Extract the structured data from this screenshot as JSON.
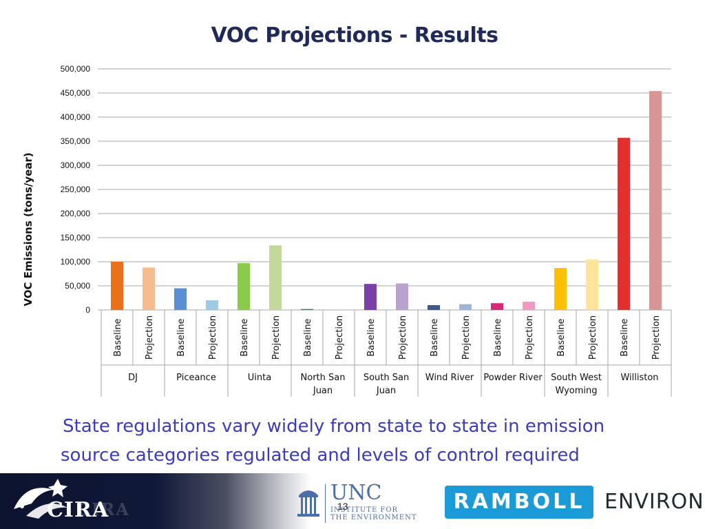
{
  "slide": {
    "title": "VOC Projections - Results",
    "caption_line1": "State regulations vary widely from state to state in emission",
    "caption_line2": "source categories regulated and levels of control required",
    "page_number": "13"
  },
  "footer": {
    "cira_logo_text": "CIRA",
    "unc_name": "UNC",
    "unc_sub_line1": "INSTITUTE FOR",
    "unc_sub_line2": "THE ENVIRONMENT",
    "ramboll_text": "RAMBOLL",
    "environ_text": "ENVIRON",
    "ramboll_color": "#1a9ad6"
  },
  "chart_data": {
    "type": "bar",
    "title": "VOC Projections - Results",
    "ylabel": "VOC Emissions (tons/year)",
    "xlabel": "",
    "ylim": [
      0,
      500000
    ],
    "yticks": [
      0,
      50000,
      100000,
      150000,
      200000,
      250000,
      300000,
      350000,
      400000,
      450000,
      500000
    ],
    "ytick_labels": [
      "0",
      "50,000",
      "100,000",
      "150,000",
      "200,000",
      "250,000",
      "300,000",
      "350,000",
      "400,000",
      "450,000",
      "500,000"
    ],
    "grid": true,
    "legend": "none",
    "groups": [
      {
        "name": "DJ",
        "bars": [
          {
            "label": "Baseline",
            "value": 100000,
            "color": "#e8711a"
          },
          {
            "label": "Projection",
            "value": 88000,
            "color": "#f5bd8e"
          }
        ]
      },
      {
        "name": "Piceance",
        "bars": [
          {
            "label": "Baseline",
            "value": 45000,
            "color": "#5a8fd6"
          },
          {
            "label": "Projection",
            "value": 20000,
            "color": "#9ccbe3"
          }
        ]
      },
      {
        "name": "Uinta",
        "bars": [
          {
            "label": "Baseline",
            "value": 97000,
            "color": "#8acb4a"
          },
          {
            "label": "Projection",
            "value": 134000,
            "color": "#c2d99a"
          }
        ]
      },
      {
        "name": "North San Juan",
        "bars": [
          {
            "label": "Baseline",
            "value": 2000,
            "color": "#2e8b57"
          },
          {
            "label": "Projection",
            "value": 1000,
            "color": "#9fd3bf"
          }
        ]
      },
      {
        "name": "South San Juan",
        "bars": [
          {
            "label": "Baseline",
            "value": 54000,
            "color": "#7b3fa8"
          },
          {
            "label": "Projection",
            "value": 55000,
            "color": "#b8a3cf"
          }
        ]
      },
      {
        "name": "Wind River",
        "bars": [
          {
            "label": "Baseline",
            "value": 10000,
            "color": "#3a5a8c"
          },
          {
            "label": "Projection",
            "value": 12000,
            "color": "#9bb6d8"
          }
        ]
      },
      {
        "name": "Powder River",
        "bars": [
          {
            "label": "Baseline",
            "value": 14000,
            "color": "#d6287a"
          },
          {
            "label": "Projection",
            "value": 17000,
            "color": "#ef9ac0"
          }
        ]
      },
      {
        "name": "South West Wyoming",
        "bars": [
          {
            "label": "Baseline",
            "value": 87000,
            "color": "#ffc000"
          },
          {
            "label": "Projection",
            "value": 105000,
            "color": "#ffe49a"
          }
        ]
      },
      {
        "name": "Williston",
        "bars": [
          {
            "label": "Baseline",
            "value": 357000,
            "color": "#e3302e"
          },
          {
            "label": "Projection",
            "value": 454000,
            "color": "#d99593"
          }
        ]
      }
    ],
    "group_label_lines": [
      [
        "DJ"
      ],
      [
        "Piceance"
      ],
      [
        "Uinta"
      ],
      [
        "North San",
        "Juan"
      ],
      [
        "South San",
        "Juan"
      ],
      [
        "Wind River"
      ],
      [
        "Powder River"
      ],
      [
        "South West",
        "Wyoming"
      ],
      [
        "Williston"
      ]
    ]
  }
}
